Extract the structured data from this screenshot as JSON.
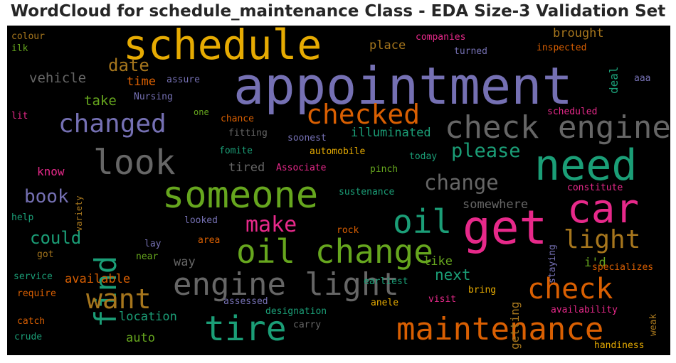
{
  "chart_data": {
    "type": "wordcloud",
    "title": "WordCloud for schedule_maintenance Class - EDA Size-3 Validation Set",
    "background": "#000000",
    "palette": {
      "purple": "#7570b3",
      "orange": "#d95f02",
      "teal": "#1b9e77",
      "pink": "#e7298a",
      "green": "#66a61e",
      "gold": "#e6ab02",
      "brown": "#a6761d",
      "gray": "#666666"
    },
    "words": [
      {
        "text": "appointment",
        "color": "purple",
        "weight": 1.0
      },
      {
        "text": "schedule",
        "color": "gold",
        "weight": 0.72
      },
      {
        "text": "get",
        "color": "pink",
        "weight": 0.8
      },
      {
        "text": "need",
        "color": "teal",
        "weight": 0.74
      },
      {
        "text": "car",
        "color": "pink",
        "weight": 0.7
      },
      {
        "text": "someone",
        "color": "green",
        "weight": 0.66
      },
      {
        "text": "oil change",
        "color": "green",
        "weight": 0.62
      },
      {
        "text": "maintenance",
        "color": "orange",
        "weight": 0.6
      },
      {
        "text": "tire",
        "color": "teal",
        "weight": 0.6
      },
      {
        "text": "look",
        "color": "gray",
        "weight": 0.6
      },
      {
        "text": "engine light",
        "color": "gray",
        "weight": 0.56
      },
      {
        "text": "check engine",
        "color": "gray",
        "weight": 0.54
      },
      {
        "text": "find",
        "color": "teal",
        "weight": 0.54
      },
      {
        "text": "oil",
        "color": "teal",
        "weight": 0.54
      },
      {
        "text": "checked",
        "color": "orange",
        "weight": 0.48
      },
      {
        "text": "check",
        "color": "orange",
        "weight": 0.5
      },
      {
        "text": "want",
        "color": "brown",
        "weight": 0.5
      },
      {
        "text": "changed",
        "color": "purple",
        "weight": 0.46
      },
      {
        "text": "light",
        "color": "brown",
        "weight": 0.44
      },
      {
        "text": "make",
        "color": "pink",
        "weight": 0.4
      },
      {
        "text": "change",
        "color": "gray",
        "weight": 0.38
      },
      {
        "text": "please",
        "color": "teal",
        "weight": 0.36
      },
      {
        "text": "book",
        "color": "purple",
        "weight": 0.34
      },
      {
        "text": "date",
        "color": "brown",
        "weight": 0.3
      },
      {
        "text": "could",
        "color": "teal",
        "weight": 0.3
      },
      {
        "text": "next",
        "color": "teal",
        "weight": 0.26
      },
      {
        "text": "take",
        "color": "green",
        "weight": 0.24
      },
      {
        "text": "vehicle",
        "color": "gray",
        "weight": 0.24
      },
      {
        "text": "available",
        "color": "orange",
        "weight": 0.22
      },
      {
        "text": "location",
        "color": "teal",
        "weight": 0.22
      },
      {
        "text": "auto",
        "color": "green",
        "weight": 0.22
      },
      {
        "text": "illuminated",
        "color": "teal",
        "weight": 0.2
      },
      {
        "text": "brought",
        "color": "brown",
        "weight": 0.2
      },
      {
        "text": "place",
        "color": "brown",
        "weight": 0.2
      },
      {
        "text": "time",
        "color": "orange",
        "weight": 0.2
      },
      {
        "text": "tired",
        "color": "gray",
        "weight": 0.2
      },
      {
        "text": "know",
        "color": "pink",
        "weight": 0.2
      },
      {
        "text": "somewhere",
        "color": "gray",
        "weight": 0.2
      },
      {
        "text": "way",
        "color": "gray",
        "weight": 0.2
      },
      {
        "text": "like",
        "color": "green",
        "weight": 0.2
      },
      {
        "text": "i'd",
        "color": "green",
        "weight": 0.2
      },
      {
        "text": "getting",
        "color": "brown",
        "weight": 0.2
      },
      {
        "text": "deal",
        "color": "teal",
        "weight": 0.18
      },
      {
        "text": "companies",
        "color": "pink",
        "weight": 0.14
      },
      {
        "text": "turned",
        "color": "purple",
        "weight": 0.14
      },
      {
        "text": "inspected",
        "color": "orange",
        "weight": 0.14
      },
      {
        "text": "colour",
        "color": "brown",
        "weight": 0.14
      },
      {
        "text": "ilk",
        "color": "green",
        "weight": 0.14
      },
      {
        "text": "assure",
        "color": "purple",
        "weight": 0.14
      },
      {
        "text": "Nursing",
        "color": "purple",
        "weight": 0.14
      },
      {
        "text": "aaa",
        "color": "purple",
        "weight": 0.12
      },
      {
        "text": "lit",
        "color": "pink",
        "weight": 0.14
      },
      {
        "text": "one",
        "color": "green",
        "weight": 0.12
      },
      {
        "text": "chance",
        "color": "orange",
        "weight": 0.14
      },
      {
        "text": "scheduled",
        "color": "pink",
        "weight": 0.14
      },
      {
        "text": "fitting",
        "color": "gray",
        "weight": 0.14
      },
      {
        "text": "soonest",
        "color": "purple",
        "weight": 0.14
      },
      {
        "text": "fomite",
        "color": "teal",
        "weight": 0.14
      },
      {
        "text": "automobile",
        "color": "gold",
        "weight": 0.14
      },
      {
        "text": "today",
        "color": "teal",
        "weight": 0.14
      },
      {
        "text": "variety",
        "color": "brown",
        "weight": 0.14
      },
      {
        "text": "Associate",
        "color": "pink",
        "weight": 0.14
      },
      {
        "text": "pinch",
        "color": "green",
        "weight": 0.14
      },
      {
        "text": "constitute",
        "color": "pink",
        "weight": 0.14
      },
      {
        "text": "sustenance",
        "color": "teal",
        "weight": 0.14
      },
      {
        "text": "help",
        "color": "teal",
        "weight": 0.14
      },
      {
        "text": "looked",
        "color": "purple",
        "weight": 0.14
      },
      {
        "text": "staying",
        "color": "purple",
        "weight": 0.14
      },
      {
        "text": "rock",
        "color": "orange",
        "weight": 0.14
      },
      {
        "text": "area",
        "color": "orange",
        "weight": 0.14
      },
      {
        "text": "lay",
        "color": "purple",
        "weight": 0.14
      },
      {
        "text": "got",
        "color": "brown",
        "weight": 0.14
      },
      {
        "text": "near",
        "color": "green",
        "weight": 0.14
      },
      {
        "text": "service",
        "color": "teal",
        "weight": 0.14
      },
      {
        "text": "specializes",
        "color": "orange",
        "weight": 0.14
      },
      {
        "text": "require",
        "color": "orange",
        "weight": 0.14
      },
      {
        "text": "earliest",
        "color": "teal",
        "weight": 0.14
      },
      {
        "text": "bring",
        "color": "gold",
        "weight": 0.14
      },
      {
        "text": "visit",
        "color": "pink",
        "weight": 0.14
      },
      {
        "text": "weak",
        "color": "brown",
        "weight": 0.14
      },
      {
        "text": "assessed",
        "color": "purple",
        "weight": 0.14
      },
      {
        "text": "anele",
        "color": "gold",
        "weight": 0.14
      },
      {
        "text": "availability",
        "color": "pink",
        "weight": 0.14
      },
      {
        "text": "catch",
        "color": "orange",
        "weight": 0.14
      },
      {
        "text": "designation",
        "color": "teal",
        "weight": 0.14
      },
      {
        "text": "carry",
        "color": "gray",
        "weight": 0.14
      },
      {
        "text": "crude",
        "color": "teal",
        "weight": 0.14
      },
      {
        "text": "handiness",
        "color": "gold",
        "weight": 0.14
      }
    ]
  }
}
